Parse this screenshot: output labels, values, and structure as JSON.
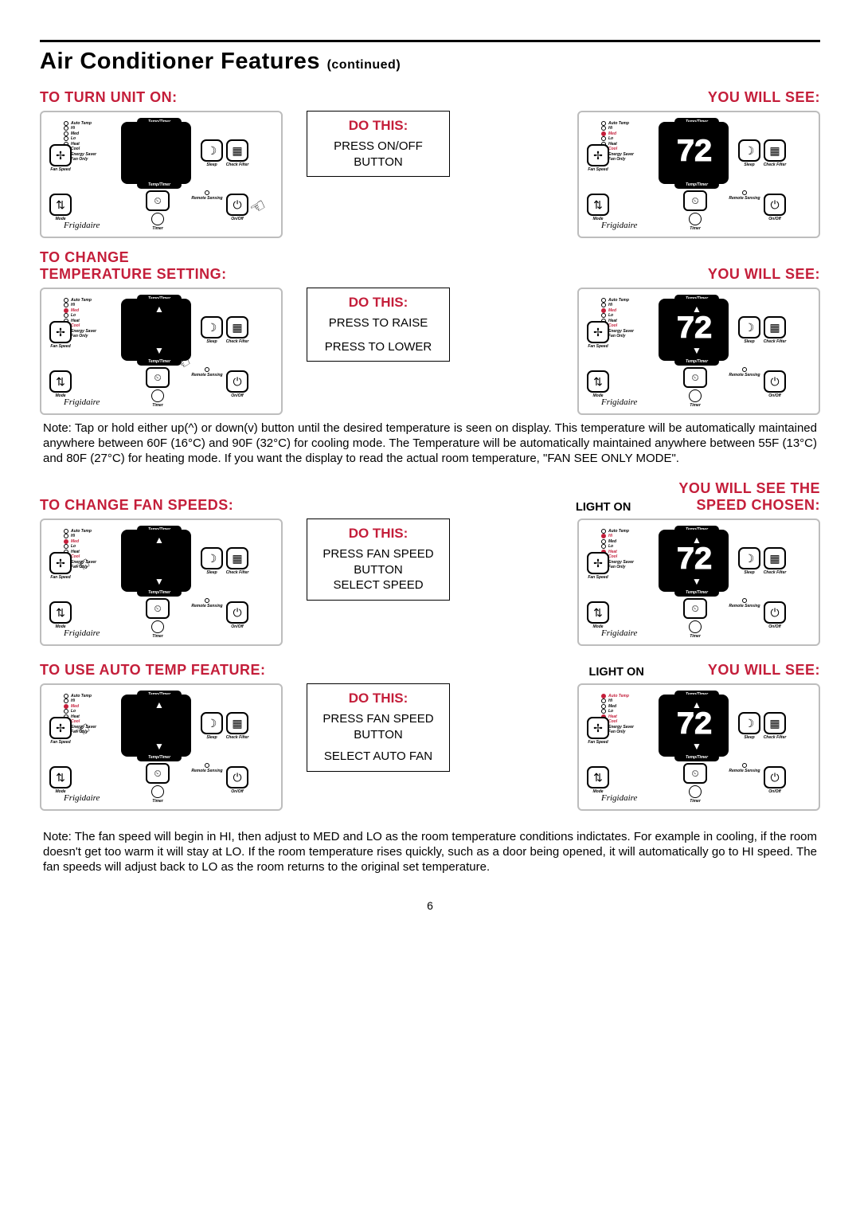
{
  "page": {
    "number": "6"
  },
  "title": {
    "main": "Air Conditioner Features",
    "suffix": "(continued)"
  },
  "headers": {
    "turn_on": "TO TURN UNIT ON:",
    "you_will_see": "YOU WILL SEE:",
    "change_temp_a": "TO CHANGE",
    "change_temp_b": "TEMPERATURE SETTING:",
    "change_fan": "TO CHANGE FAN SPEEDS:",
    "speed_chosen_a": "YOU WILL SEE THE",
    "speed_chosen_b": "SPEED CHOSEN:",
    "auto_temp": "TO USE AUTO TEMP FEATURE:",
    "light_on": "LIGHT ON"
  },
  "dothis": {
    "label": "DO THIS:",
    "onoff": "PRESS ON/OFF BUTTON",
    "raise": "PRESS TO RAISE",
    "lower": "PRESS TO LOWER",
    "fanspeed_a": "PRESS FAN SPEED BUTTON",
    "fanspeed_b": "SELECT SPEED",
    "auto_a": "PRESS FAN SPEED BUTTON",
    "auto_b": "SELECT AUTO FAN"
  },
  "notes": {
    "temp": "Note: Tap or hold either up(^) or down(v) button until the desired temperature is seen on display. This temperature will be automatically maintained anywhere between 60F (16°C) and 90F (32°C) for cooling mode. The Temperature will be automatically maintained anywhere between 55F (13°C) and 80F (27°C) for heating mode. If you want the display to read the actual room temperature, \"FAN SEE ONLY MODE\".",
    "fan": "Note: The fan speed will begin in HI, then adjust to MED and LO as the room temperature conditions indictates. For example in cooling, if the room doesn't get too warm it will stay at LO. If the room temperature rises quickly, such as a door being opened, it will automatically go to HI speed. The fan speeds will adjust back to LO as the room returns to the original set temperature."
  },
  "panel": {
    "leds": [
      "Auto Temp",
      "Hi",
      "Med",
      "Lo",
      "Heat",
      "Cool",
      "Energy Saver",
      "Fan Only"
    ],
    "display_value": "72",
    "pill": "Temp/Timer",
    "labels": {
      "fan": "Fan\nSpeed",
      "sleep": "Sleep",
      "filter": "Check\nFilter",
      "mode": "Mode",
      "power": "On/Off",
      "timer": "Timer",
      "remote": "Remote\nSensing"
    },
    "brand": "Frigidaire",
    "colors": {
      "accent": "#c41e3a",
      "border": "#bdbdbd",
      "black": "#000000"
    }
  }
}
